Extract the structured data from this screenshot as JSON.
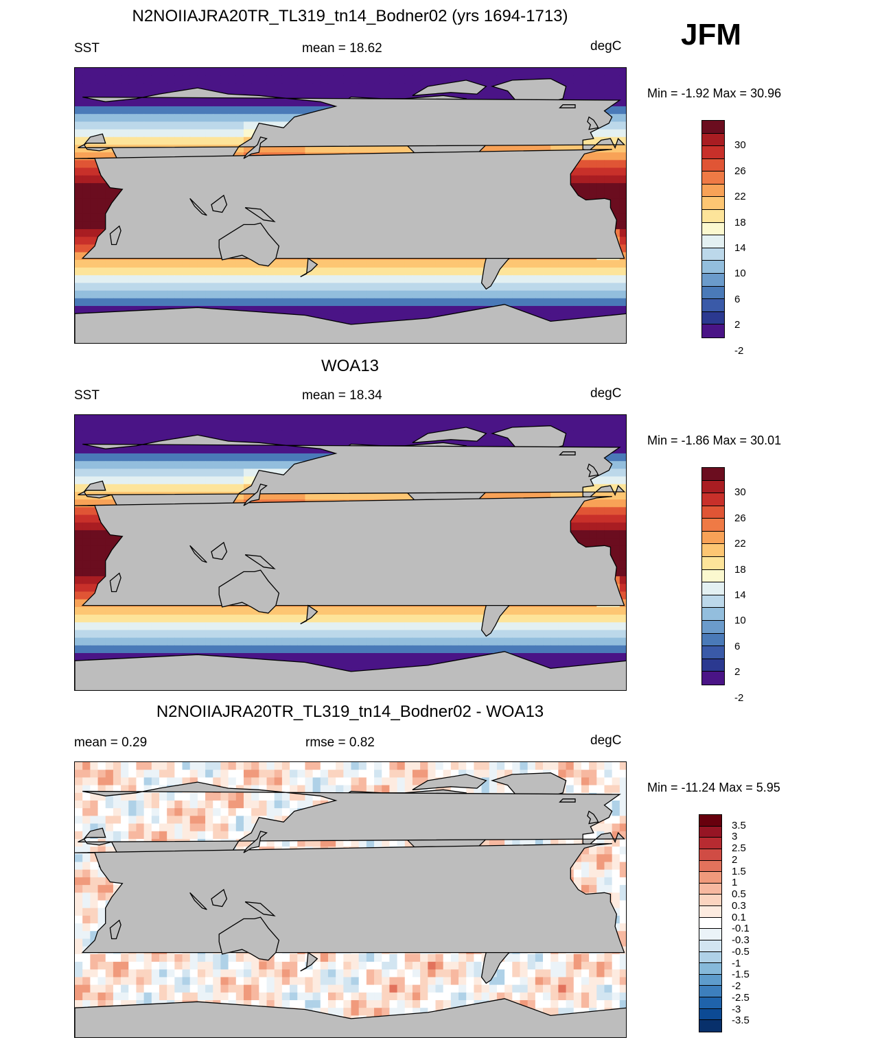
{
  "season": "JFM",
  "colors": {
    "land": "#bdbdbd",
    "sst_scale": [
      "#4a1486",
      "#2b3990",
      "#3a5aa8",
      "#4a7ab8",
      "#6b9bcb",
      "#93bedd",
      "#bcd8ea",
      "#e3f0f2",
      "#fbf8cf",
      "#fde49a",
      "#fdc673",
      "#f8a257",
      "#ef7a45",
      "#e05535",
      "#c8302a",
      "#a91d22",
      "#6b0d1f"
    ],
    "diff_scale": [
      "#08306b",
      "#0c4a94",
      "#1f63ab",
      "#3d7fbd",
      "#5e9ccc",
      "#86b9da",
      "#afd1e7",
      "#d2e5f1",
      "#ebf3f8",
      "#ffffff",
      "#fdebe0",
      "#fbd4c0",
      "#f7b8a0",
      "#f09a7c",
      "#e2725c",
      "#d04c44",
      "#b72b31",
      "#961524",
      "#67000d"
    ]
  },
  "panels": [
    {
      "title": "N2NOIIAJRA20TR_TL319_tn14_Bodner02 (yrs 1694-1713)",
      "left": "SST",
      "center": "mean =  18.62",
      "right": "degC",
      "minmax": "Min =  -1.92 Max =  30.96",
      "colorbar": {
        "scale": "sst",
        "ticks": [
          "30",
          "26",
          "22",
          "18",
          "14",
          "10",
          "6",
          "2",
          "-2"
        ]
      }
    },
    {
      "title": "WOA13",
      "left": "SST",
      "center": "mean =  18.34",
      "right": "degC",
      "minmax": "Min =  -1.86 Max =  30.01",
      "colorbar": {
        "scale": "sst",
        "ticks": [
          "30",
          "26",
          "22",
          "18",
          "14",
          "10",
          "6",
          "2",
          "-2"
        ]
      }
    },
    {
      "title": "N2NOIIAJRA20TR_TL319_tn14_Bodner02 - WOA13",
      "left": "mean =   0.29",
      "center": "rmse =   0.82",
      "right": "degC",
      "minmax": "Min = -11.24 Max =   5.95",
      "colorbar": {
        "scale": "diff",
        "ticks": [
          "3.5",
          "3",
          "2.5",
          "2",
          "1.5",
          "1",
          "0.5",
          "0.3",
          "0.1",
          "-0.1",
          "-0.3",
          "-0.5",
          "-1",
          "-1.5",
          "-2",
          "-2.5",
          "-3",
          "-3.5"
        ]
      }
    }
  ]
}
